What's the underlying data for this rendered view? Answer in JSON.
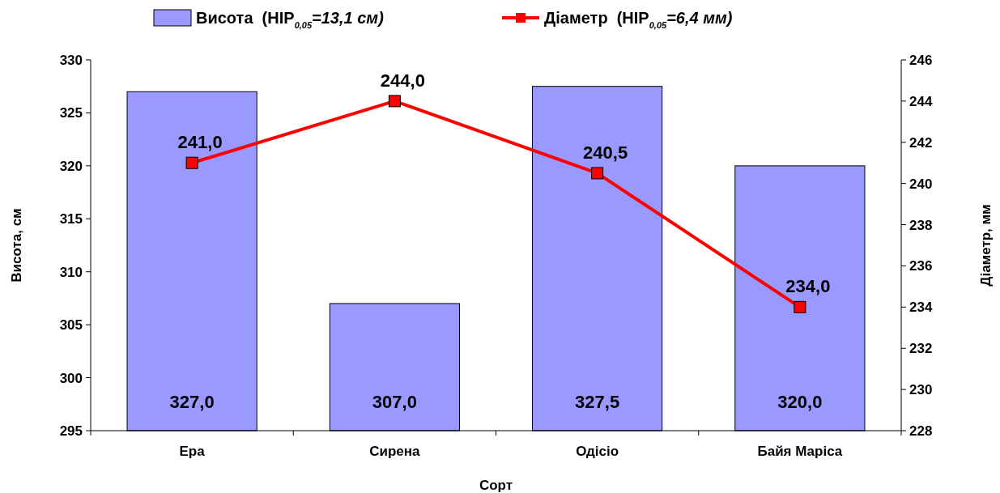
{
  "chart_data": {
    "type": "bar",
    "xlabel": "Сорт",
    "ylabel": "Висота, см",
    "y2label": "Діаметр, мм",
    "categories": [
      "Ера",
      "Сирена",
      "Одісіо",
      "Байя Маріса"
    ],
    "series": [
      {
        "name": "Висота  (HIP$_{0,05}$=13,1 см)",
        "color": "#9999ff",
        "values": [
          327.0,
          307.0,
          327.5,
          320.0
        ],
        "value_labels": [
          "327,0",
          "307,0",
          "327,5",
          "320,0"
        ]
      },
      {
        "name": "Діаметр  (HIP$_{0,05}$=6,4 мм)",
        "type": "line",
        "axis": "y2",
        "color": "#ff0000",
        "values": [
          241.0,
          244.0,
          240.5,
          234.0
        ],
        "value_labels": [
          "241,0",
          "244,0",
          "240,5",
          "234,0"
        ]
      }
    ],
    "ylim": [
      295,
      330
    ],
    "yticks": [
      295,
      300,
      305,
      310,
      315,
      320,
      325,
      330
    ],
    "y2lim": [
      228,
      246
    ],
    "y2ticks": [
      228,
      230,
      232,
      234,
      236,
      238,
      240,
      242,
      244,
      246
    ],
    "legend": "top",
    "grid": false,
    "marker": "square",
    "line_style": "solid"
  }
}
